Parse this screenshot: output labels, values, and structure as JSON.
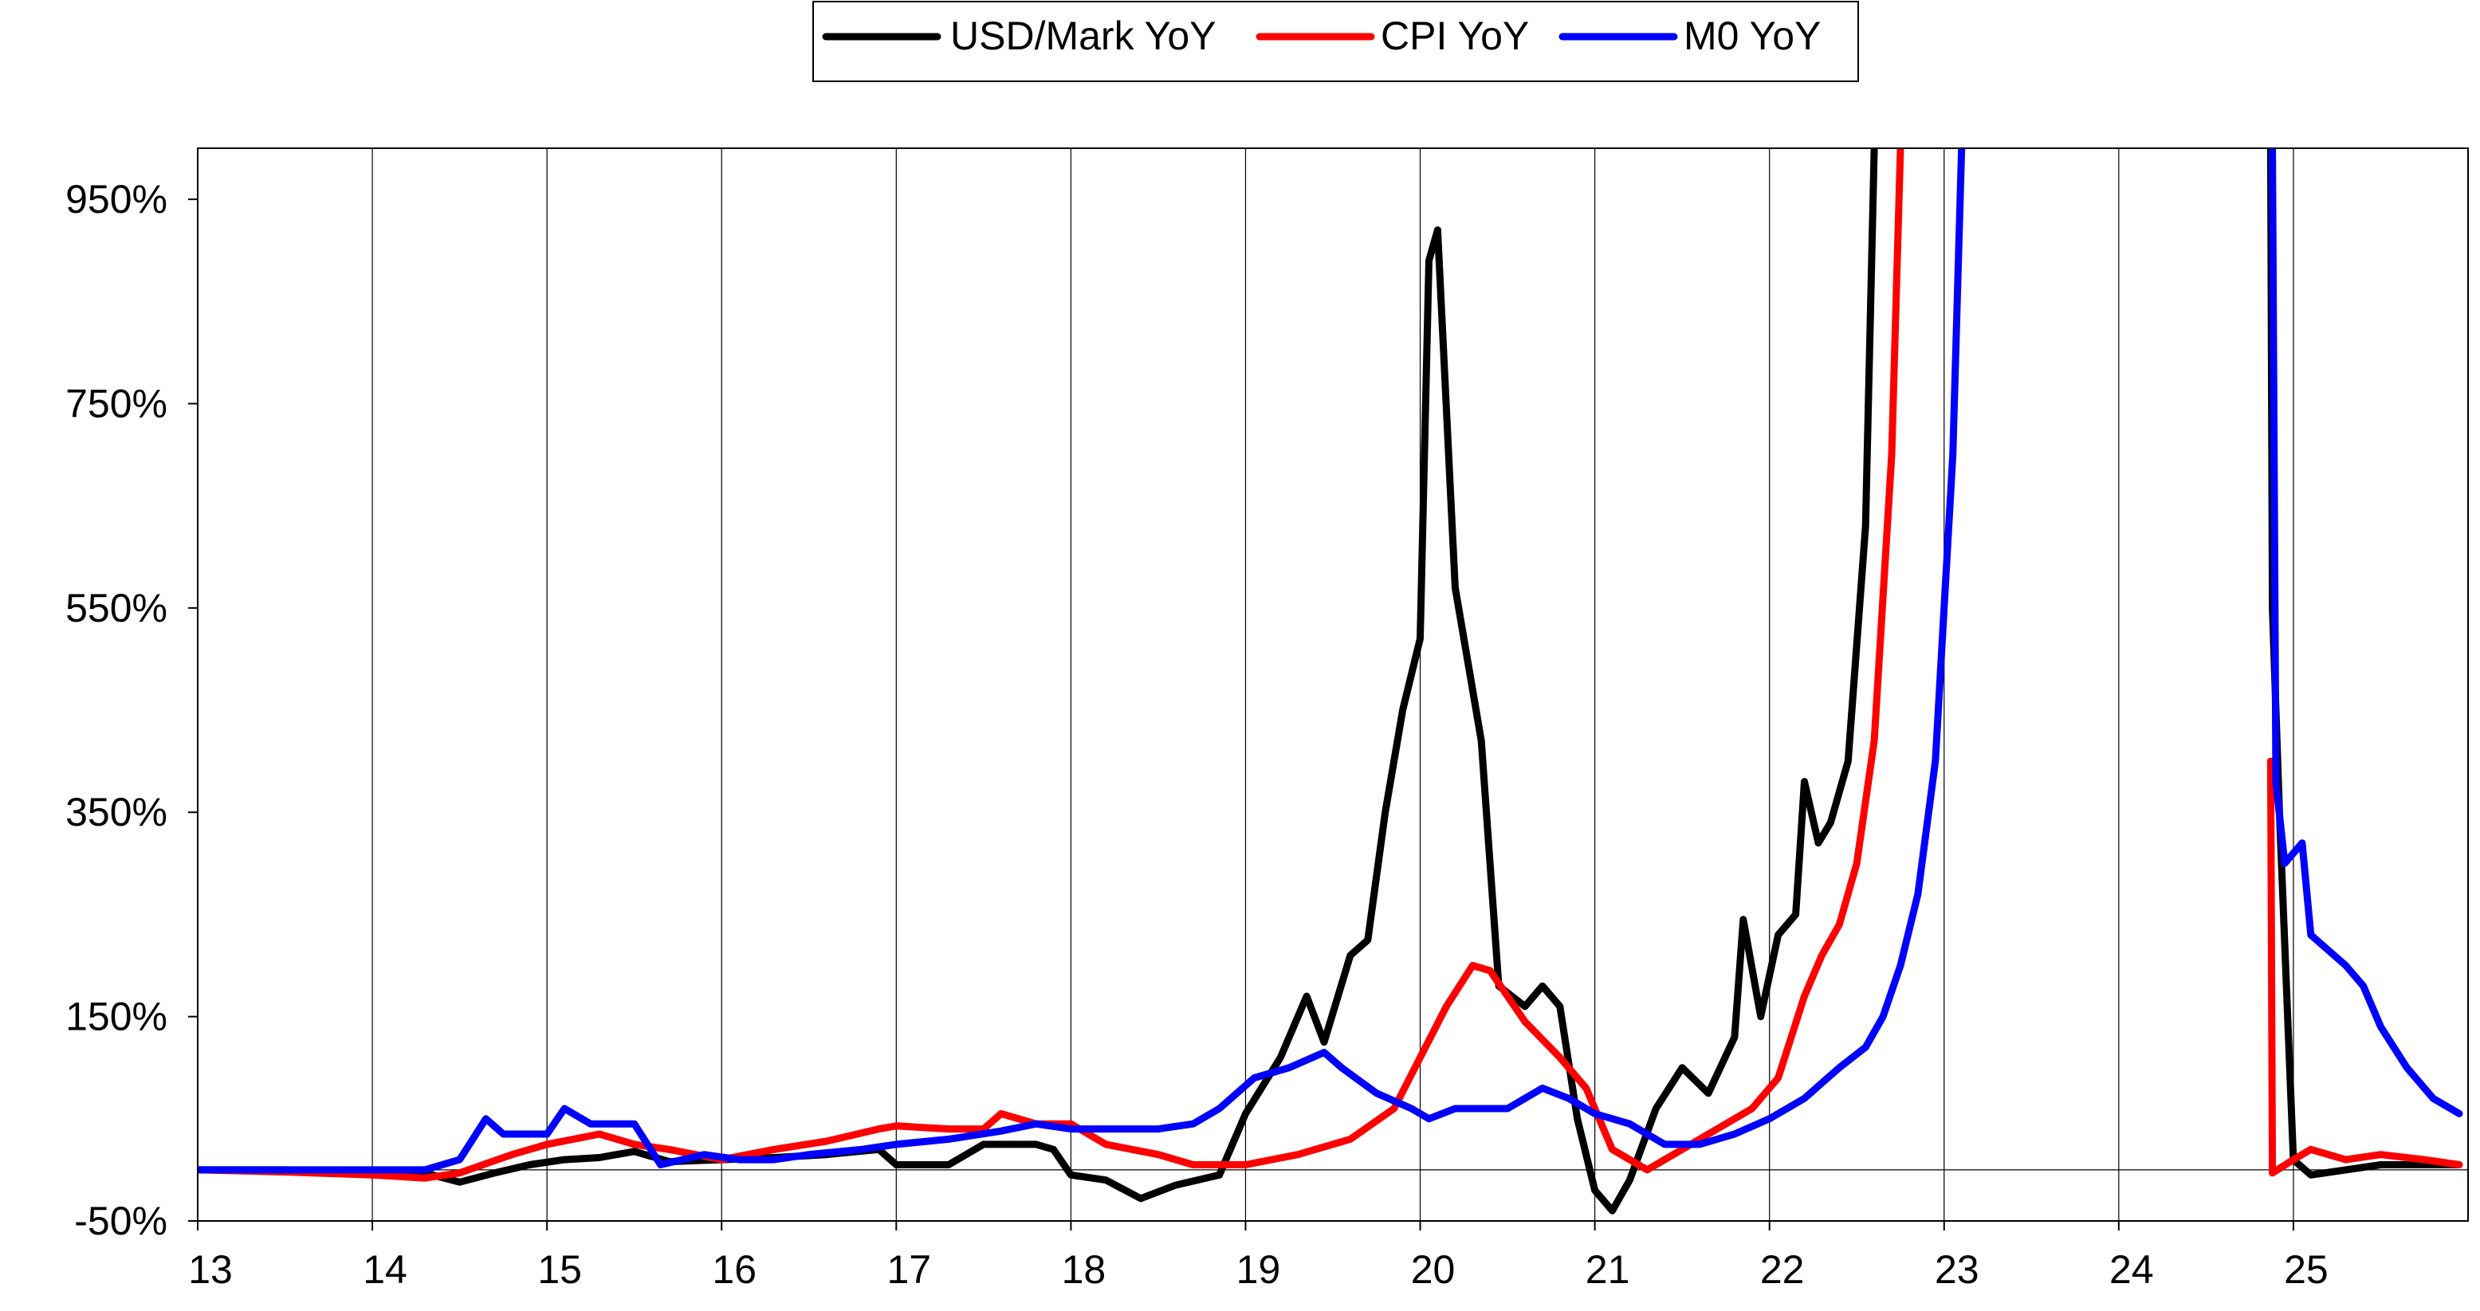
{
  "chart_data": {
    "type": "line",
    "title": "",
    "xlabel": "",
    "ylabel": "",
    "xlim": [
      13,
      26
    ],
    "ylim": [
      -50,
      1000
    ],
    "x_ticks": [
      {
        "value": 13,
        "label": "13"
      },
      {
        "value": 14,
        "label": "14"
      },
      {
        "value": 15,
        "label": "15"
      },
      {
        "value": 16,
        "label": "16"
      },
      {
        "value": 17,
        "label": "17"
      },
      {
        "value": 18,
        "label": "18"
      },
      {
        "value": 19,
        "label": "19"
      },
      {
        "value": 20,
        "label": "20"
      },
      {
        "value": 21,
        "label": "21"
      },
      {
        "value": 22,
        "label": "22"
      },
      {
        "value": 23,
        "label": "23"
      },
      {
        "value": 24,
        "label": "24"
      },
      {
        "value": 25,
        "label": "25"
      }
    ],
    "y_ticks": [
      {
        "value": -50,
        "label": "-50%"
      },
      {
        "value": 150,
        "label": "150%"
      },
      {
        "value": 350,
        "label": "350%"
      },
      {
        "value": 550,
        "label": "550%"
      },
      {
        "value": 750,
        "label": "750%"
      },
      {
        "value": 950,
        "label": "950%"
      }
    ],
    "grid": "vertical",
    "zero_line": 0,
    "legend_position": "top-center",
    "series": [
      {
        "name": "USD/Mark YoY",
        "color": "#000000",
        "points": [
          [
            13.0,
            0
          ],
          [
            13.5,
            0
          ],
          [
            14.0,
            -2
          ],
          [
            14.3,
            -3
          ],
          [
            14.5,
            -12
          ],
          [
            14.7,
            -3
          ],
          [
            14.9,
            5
          ],
          [
            15.1,
            10
          ],
          [
            15.3,
            12
          ],
          [
            15.5,
            18
          ],
          [
            15.7,
            8
          ],
          [
            16.0,
            10
          ],
          [
            16.3,
            12
          ],
          [
            16.6,
            15
          ],
          [
            16.9,
            20
          ],
          [
            17.0,
            5
          ],
          [
            17.3,
            5
          ],
          [
            17.5,
            25
          ],
          [
            17.8,
            25
          ],
          [
            17.9,
            20
          ],
          [
            18.0,
            -5
          ],
          [
            18.2,
            -10
          ],
          [
            18.4,
            -28
          ],
          [
            18.6,
            -15
          ],
          [
            18.85,
            -5
          ],
          [
            19.0,
            55
          ],
          [
            19.2,
            110
          ],
          [
            19.35,
            170
          ],
          [
            19.45,
            125
          ],
          [
            19.6,
            210
          ],
          [
            19.7,
            225
          ],
          [
            19.8,
            350
          ],
          [
            19.9,
            450
          ],
          [
            20.0,
            520
          ],
          [
            20.05,
            890
          ],
          [
            20.1,
            920
          ],
          [
            20.2,
            570
          ],
          [
            20.35,
            420
          ],
          [
            20.45,
            180
          ],
          [
            20.6,
            160
          ],
          [
            20.7,
            180
          ],
          [
            20.8,
            160
          ],
          [
            20.9,
            50
          ],
          [
            21.0,
            -20
          ],
          [
            21.1,
            -40
          ],
          [
            21.2,
            -10
          ],
          [
            21.35,
            60
          ],
          [
            21.5,
            100
          ],
          [
            21.65,
            75
          ],
          [
            21.8,
            130
          ],
          [
            21.85,
            245
          ],
          [
            21.95,
            150
          ],
          [
            22.05,
            230
          ],
          [
            22.15,
            250
          ],
          [
            22.2,
            380
          ],
          [
            22.28,
            320
          ],
          [
            22.35,
            340
          ],
          [
            22.45,
            400
          ],
          [
            22.55,
            630
          ],
          [
            22.6,
            1000
          ]
        ]
      },
      {
        "name": "CPI YoY",
        "color": "#ff0000",
        "points": [
          [
            13.0,
            0
          ],
          [
            13.5,
            -2
          ],
          [
            14.0,
            -5
          ],
          [
            14.3,
            -8
          ],
          [
            14.5,
            -3
          ],
          [
            14.8,
            15
          ],
          [
            15.0,
            25
          ],
          [
            15.3,
            35
          ],
          [
            15.5,
            25
          ],
          [
            15.7,
            20
          ],
          [
            16.0,
            10
          ],
          [
            16.3,
            20
          ],
          [
            16.6,
            28
          ],
          [
            16.9,
            40
          ],
          [
            17.0,
            43
          ],
          [
            17.3,
            40
          ],
          [
            17.5,
            40
          ],
          [
            17.6,
            55
          ],
          [
            17.8,
            45
          ],
          [
            18.0,
            45
          ],
          [
            18.2,
            25
          ],
          [
            18.5,
            15
          ],
          [
            18.7,
            5
          ],
          [
            18.85,
            5
          ],
          [
            19.0,
            5
          ],
          [
            19.3,
            15
          ],
          [
            19.6,
            30
          ],
          [
            19.85,
            60
          ],
          [
            20.0,
            110
          ],
          [
            20.15,
            160
          ],
          [
            20.3,
            200
          ],
          [
            20.4,
            195
          ],
          [
            20.6,
            145
          ],
          [
            20.8,
            110
          ],
          [
            20.95,
            80
          ],
          [
            21.1,
            20
          ],
          [
            21.3,
            0
          ],
          [
            21.5,
            20
          ],
          [
            21.7,
            40
          ],
          [
            21.9,
            60
          ],
          [
            22.05,
            90
          ],
          [
            22.2,
            170
          ],
          [
            22.3,
            210
          ],
          [
            22.4,
            240
          ],
          [
            22.5,
            300
          ],
          [
            22.6,
            420
          ],
          [
            22.7,
            700
          ],
          [
            22.75,
            1000
          ]
        ]
      },
      {
        "name": "M0 YoY",
        "color": "#0000ff",
        "points": [
          [
            13.0,
            0
          ],
          [
            13.5,
            0
          ],
          [
            14.0,
            0
          ],
          [
            14.3,
            0
          ],
          [
            14.5,
            10
          ],
          [
            14.65,
            50
          ],
          [
            14.75,
            35
          ],
          [
            15.0,
            35
          ],
          [
            15.1,
            60
          ],
          [
            15.25,
            45
          ],
          [
            15.5,
            45
          ],
          [
            15.65,
            5
          ],
          [
            15.9,
            15
          ],
          [
            16.1,
            10
          ],
          [
            16.3,
            10
          ],
          [
            16.5,
            15
          ],
          [
            16.8,
            20
          ],
          [
            17.0,
            25
          ],
          [
            17.3,
            30
          ],
          [
            17.6,
            38
          ],
          [
            17.8,
            45
          ],
          [
            18.0,
            40
          ],
          [
            18.3,
            40
          ],
          [
            18.5,
            40
          ],
          [
            18.7,
            45
          ],
          [
            18.85,
            60
          ],
          [
            19.05,
            90
          ],
          [
            19.25,
            100
          ],
          [
            19.45,
            115
          ],
          [
            19.55,
            100
          ],
          [
            19.75,
            75
          ],
          [
            19.95,
            60
          ],
          [
            20.05,
            50
          ],
          [
            20.2,
            60
          ],
          [
            20.5,
            60
          ],
          [
            20.7,
            80
          ],
          [
            20.85,
            70
          ],
          [
            21.0,
            55
          ],
          [
            21.2,
            45
          ],
          [
            21.4,
            25
          ],
          [
            21.6,
            25
          ],
          [
            21.8,
            35
          ],
          [
            22.0,
            50
          ],
          [
            22.2,
            70
          ],
          [
            22.4,
            100
          ],
          [
            22.55,
            120
          ],
          [
            22.65,
            150
          ],
          [
            22.75,
            200
          ],
          [
            22.85,
            270
          ],
          [
            22.95,
            400
          ],
          [
            23.05,
            700
          ],
          [
            23.1,
            1000
          ]
        ]
      }
    ],
    "segments_after_gap": [
      {
        "series": "USD/Mark YoY",
        "points": [
          [
            24.87,
            1000
          ],
          [
            24.88,
            550
          ],
          [
            24.92,
            350
          ],
          [
            25.0,
            10
          ],
          [
            25.1,
            -5
          ],
          [
            25.3,
            0
          ],
          [
            25.5,
            5
          ],
          [
            25.95,
            5
          ]
        ]
      },
      {
        "series": "CPI YoY",
        "points": [
          [
            24.87,
            400
          ],
          [
            24.88,
            -3
          ],
          [
            25.0,
            10
          ],
          [
            25.1,
            20
          ],
          [
            25.3,
            10
          ],
          [
            25.5,
            15
          ],
          [
            25.75,
            10
          ],
          [
            25.95,
            5
          ]
        ]
      },
      {
        "series": "M0 YoY",
        "points": [
          [
            24.88,
            1000
          ],
          [
            24.9,
            380
          ],
          [
            24.95,
            300
          ],
          [
            25.05,
            320
          ],
          [
            25.1,
            230
          ],
          [
            25.3,
            200
          ],
          [
            25.4,
            180
          ],
          [
            25.5,
            140
          ],
          [
            25.65,
            100
          ],
          [
            25.8,
            70
          ],
          [
            25.95,
            55
          ]
        ]
      }
    ]
  }
}
